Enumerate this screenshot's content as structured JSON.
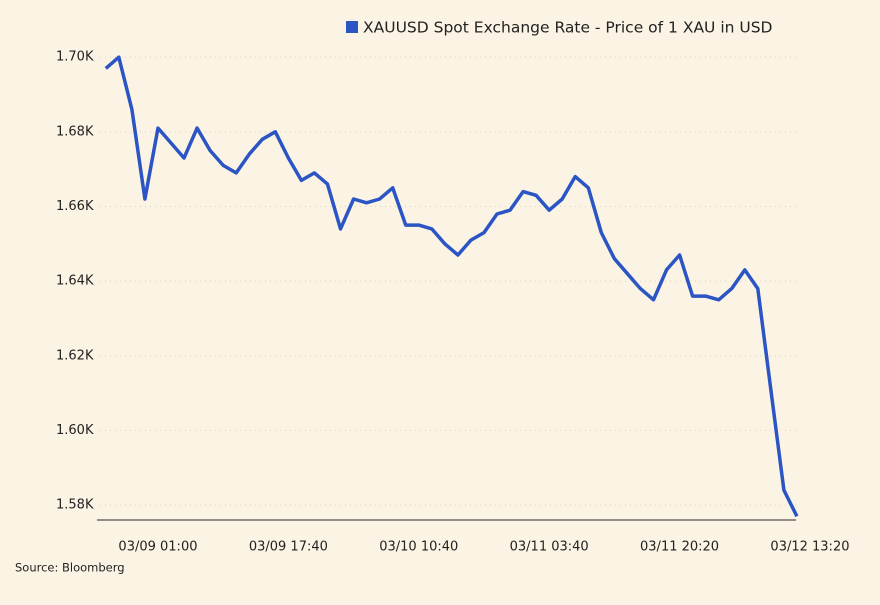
{
  "chart_data": {
    "type": "line",
    "legend": "XAUUSD Spot Exchange Rate - Price of 1 XAU in USD",
    "source": "Source: Bloomberg",
    "categories": [
      null,
      null,
      null,
      null,
      "03/09 01:00",
      null,
      null,
      null,
      null,
      null,
      null,
      null,
      null,
      null,
      "03/09 17:40",
      null,
      null,
      null,
      null,
      null,
      null,
      null,
      null,
      null,
      "03/10 10:40",
      null,
      null,
      null,
      null,
      null,
      null,
      null,
      null,
      null,
      "03/11 03:40",
      null,
      null,
      null,
      null,
      null,
      null,
      null,
      null,
      null,
      "03/11 20:20",
      null,
      null,
      null,
      null,
      null,
      null,
      null,
      null,
      null,
      "03/12 13:20"
    ],
    "series": [
      {
        "name": "XAUUSD Spot Exchange Rate - Price of 1 XAU in USD",
        "color": "#2b55c4",
        "values": [
          1697,
          1700,
          1686,
          1662,
          1681,
          1677,
          1673,
          1681,
          1675,
          1671,
          1669,
          1674,
          1678,
          1680,
          1673,
          1667,
          1669,
          1666,
          1654,
          1662,
          1661,
          1662,
          1665,
          1655,
          1655,
          1654,
          1650,
          1647,
          1651,
          1653,
          1658,
          1659,
          1664,
          1663,
          1659,
          1662,
          1668,
          1665,
          1653,
          1646,
          1642,
          1638,
          1635,
          1643,
          1647,
          1636,
          1636,
          1635,
          1638,
          1643,
          1638,
          1611,
          1584,
          1577,
          null
        ]
      }
    ],
    "ylim": [
      1576,
      1703
    ],
    "yticks": [
      {
        "value": 1580,
        "label": "1.58K"
      },
      {
        "value": 1600,
        "label": "1.60K"
      },
      {
        "value": 1620,
        "label": "1.62K"
      },
      {
        "value": 1640,
        "label": "1.64K"
      },
      {
        "value": 1660,
        "label": "1.66K"
      },
      {
        "value": 1680,
        "label": "1.68K"
      },
      {
        "value": 1700,
        "label": "1.70K"
      }
    ],
    "grid": true
  }
}
